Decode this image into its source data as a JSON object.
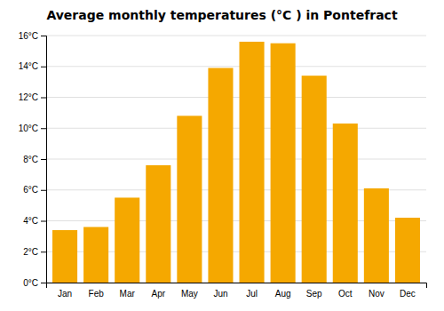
{
  "chart_data": {
    "type": "bar",
    "title": "Average monthly temperatures (°C ) in Pontefract",
    "categories": [
      "Jan",
      "Feb",
      "Mar",
      "Apr",
      "May",
      "Jun",
      "Jul",
      "Aug",
      "Sep",
      "Oct",
      "Nov",
      "Dec"
    ],
    "values": [
      3.4,
      3.6,
      5.5,
      7.6,
      10.8,
      13.9,
      15.6,
      15.5,
      13.4,
      10.3,
      6.1,
      4.2
    ],
    "color": "#F5A800",
    "ylim": [
      0,
      16
    ],
    "yticks": [
      {
        "value": 0,
        "label": "0°C"
      },
      {
        "value": 2,
        "label": "2°C"
      },
      {
        "value": 4,
        "label": "4°C"
      },
      {
        "value": 6,
        "label": "6°C"
      },
      {
        "value": 8,
        "label": "8°C"
      },
      {
        "value": 10,
        "label": "10°C"
      },
      {
        "value": 12,
        "label": "12°C"
      },
      {
        "value": 14,
        "label": "14°C"
      },
      {
        "value": 16,
        "label": "16°C"
      }
    ],
    "grid": true
  }
}
